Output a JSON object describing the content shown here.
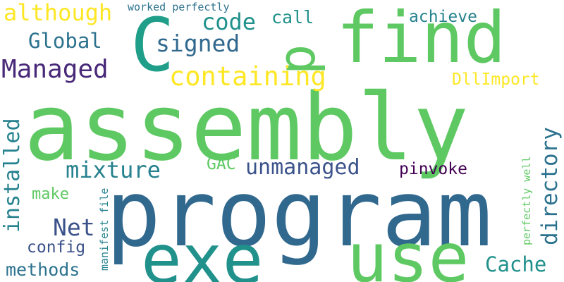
{
  "cloud": {
    "words": {
      "assembly": {
        "text": "assembly",
        "color": "#5ec962"
      },
      "program": {
        "text": "program",
        "color": "#31688e"
      },
      "find": {
        "text": "find",
        "color": "#5ec962"
      },
      "use": {
        "text": "use",
        "color": "#5ec962"
      },
      "exe": {
        "text": "exe",
        "color": "#21918c"
      },
      "c": {
        "text": "C",
        "color": "#1f9e89"
      },
      "p": {
        "text": "p",
        "color": "#5ec962"
      },
      "containing": {
        "text": "containing",
        "color": "#fde725"
      },
      "managed": {
        "text": "Managed",
        "color": "#482878"
      },
      "signed": {
        "text": "signed",
        "color": "#31688e"
      },
      "global": {
        "text": "Global",
        "color": "#2c728e"
      },
      "although": {
        "text": "although",
        "color": "#fde725"
      },
      "code": {
        "text": "code",
        "color": "#21918c"
      },
      "call": {
        "text": "call",
        "color": "#21918c"
      },
      "achieve": {
        "text": "achieve",
        "color": "#26828e"
      },
      "worked_perfectly": {
        "text": "worked perfectly",
        "color": "#2c728e"
      },
      "dllimport": {
        "text": "DllImport",
        "color": "#fde725"
      },
      "mixture": {
        "text": "mixture",
        "color": "#26828e"
      },
      "unmanaged": {
        "text": "unmanaged",
        "color": "#3b528b"
      },
      "gac": {
        "text": "GAC",
        "color": "#5ec962"
      },
      "pinvoke": {
        "text": "pinvoke",
        "color": "#440154"
      },
      "installed": {
        "text": "installed",
        "color": "#26828e"
      },
      "make": {
        "text": "make",
        "color": "#5ec962"
      },
      "net": {
        "text": "Net",
        "color": "#3b528b"
      },
      "config": {
        "text": "config",
        "color": "#3b528b"
      },
      "methods": {
        "text": "methods",
        "color": "#2c728e"
      },
      "manifest_file": {
        "text": "manifest file",
        "color": "#26828e"
      },
      "directory": {
        "text": "directory",
        "color": "#2c728e"
      },
      "perfectly_well": {
        "text": "perfectly well",
        "color": "#5ec962"
      },
      "cache": {
        "text": "Cache",
        "color": "#21918c"
      }
    }
  }
}
